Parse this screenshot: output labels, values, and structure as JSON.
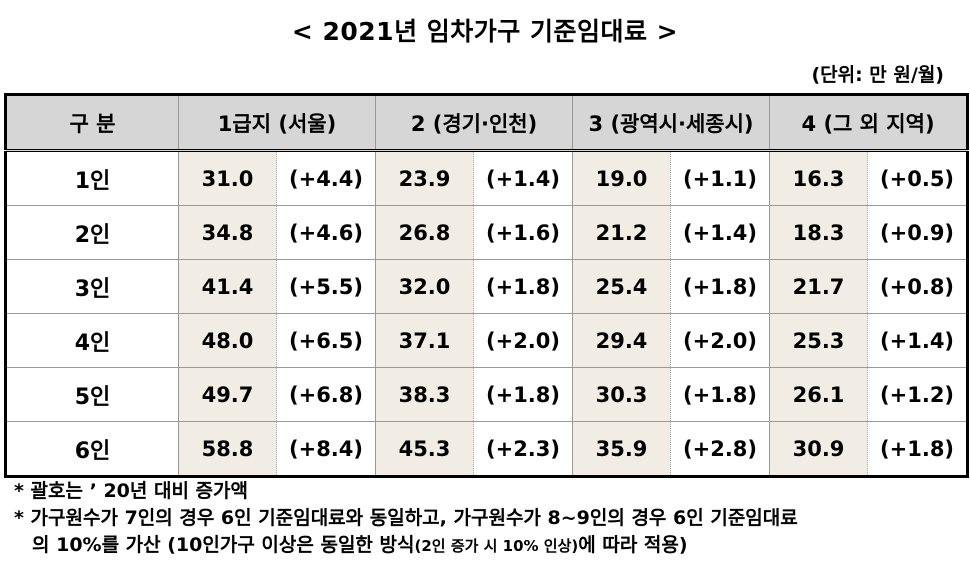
{
  "title": "< 2021년 임차가구 기준임대료 >",
  "unit": "(단위: 만 원/월)",
  "table": {
    "header": [
      "구 분",
      "1급지 (서울)",
      "2 (경기·인천)",
      "3 (광역시·세종시)",
      "4 (그 외 지역)"
    ],
    "rows": [
      {
        "label": "1인",
        "cells": [
          [
            "31.0",
            "(+4.4)"
          ],
          [
            "23.9",
            "(+1.4)"
          ],
          [
            "19.0",
            "(+1.1)"
          ],
          [
            "16.3",
            "(+0.5)"
          ]
        ]
      },
      {
        "label": "2인",
        "cells": [
          [
            "34.8",
            "(+4.6)"
          ],
          [
            "26.8",
            "(+1.6)"
          ],
          [
            "21.2",
            "(+1.4)"
          ],
          [
            "18.3",
            "(+0.9)"
          ]
        ]
      },
      {
        "label": "3인",
        "cells": [
          [
            "41.4",
            "(+5.5)"
          ],
          [
            "32.0",
            "(+1.8)"
          ],
          [
            "25.4",
            "(+1.8)"
          ],
          [
            "21.7",
            "(+0.8)"
          ]
        ]
      },
      {
        "label": "4인",
        "cells": [
          [
            "48.0",
            "(+6.5)"
          ],
          [
            "37.1",
            "(+2.0)"
          ],
          [
            "29.4",
            "(+2.0)"
          ],
          [
            "25.3",
            "(+1.4)"
          ]
        ]
      },
      {
        "label": "5인",
        "cells": [
          [
            "49.7",
            "(+6.8)"
          ],
          [
            "38.3",
            "(+1.8)"
          ],
          [
            "30.3",
            "(+1.8)"
          ],
          [
            "26.1",
            "(+1.2)"
          ]
        ]
      },
      {
        "label": "6인",
        "cells": [
          [
            "58.8",
            "(+8.4)"
          ],
          [
            "45.3",
            "(+2.3)"
          ],
          [
            "35.9",
            "(+2.8)"
          ],
          [
            "30.9",
            "(+1.8)"
          ]
        ]
      }
    ]
  },
  "notes": {
    "note1": "* 괄호는 ’ 20년 대비 증가액",
    "note2_line1": "* 가구원수가 7인의 경우 6인 기준임대료와 동일하고, 가구원수가 8~9인의 경우 6인 기준임대료",
    "note2_line2_main": "의 10%를 가산 (10인가구 이상은 동일한 방식",
    "note2_line2_small": "(2인 증가 시 10% 인상)",
    "note2_line2_end": "에 따라 적용)"
  },
  "colors": {
    "header_bg": "#d6d6d6",
    "value_cell_bg": "#f2ede4"
  }
}
